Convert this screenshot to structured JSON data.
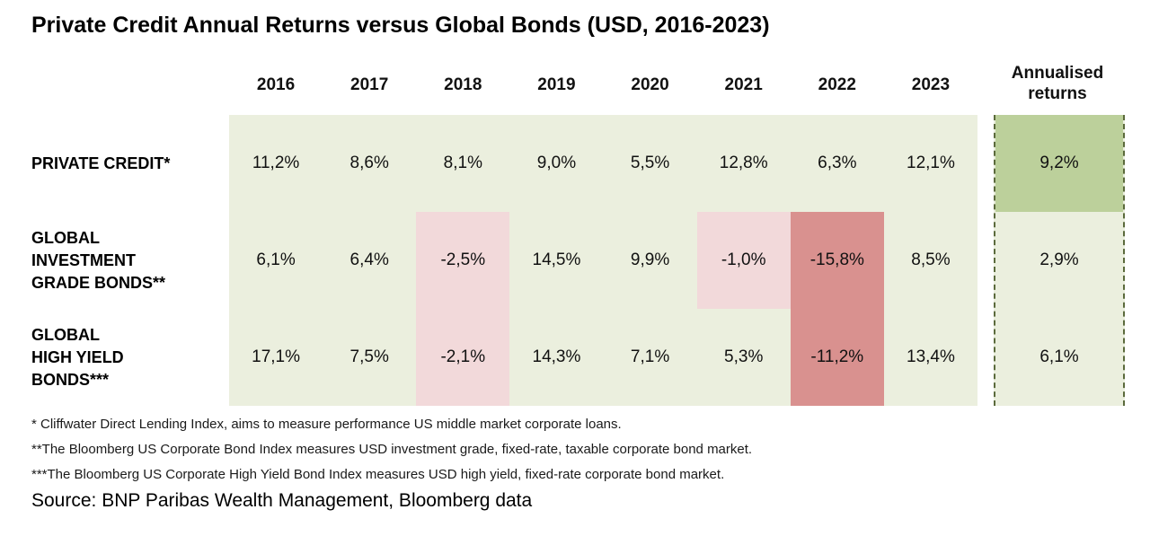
{
  "title": "Private Credit Annual Returns versus Global Bonds (USD, 2016-2023)",
  "chart_data": {
    "type": "table",
    "title": "Private Credit Annual Returns versus Global Bonds (USD, 2016-2023)",
    "categories": [
      "2016",
      "2017",
      "2018",
      "2019",
      "2020",
      "2021",
      "2022",
      "2023"
    ],
    "annualised_header_lines": [
      "Annualised",
      "returns"
    ],
    "value_format": "percent, comma decimal separator",
    "rows": [
      {
        "label_lines": [
          "PRIVATE CREDIT*"
        ],
        "values": [
          11.2,
          8.6,
          8.1,
          9.0,
          5.5,
          12.8,
          6.3,
          12.1
        ],
        "display": [
          "11,2%",
          "8,6%",
          "8,1%",
          "9,0%",
          "5,5%",
          "12,8%",
          "6,3%",
          "12,1%"
        ],
        "cell_styles": [
          "base",
          "base",
          "base",
          "base",
          "base",
          "base",
          "base",
          "base"
        ],
        "annualised_value": 9.2,
        "annualised_display": "9,2%",
        "annualised_style": "best"
      },
      {
        "label_lines": [
          "GLOBAL",
          "INVESTMENT",
          "GRADE BONDS**"
        ],
        "values": [
          6.1,
          6.4,
          -2.5,
          14.5,
          9.9,
          -1.0,
          -15.8,
          8.5
        ],
        "display": [
          "6,1%",
          "6,4%",
          "-2,5%",
          "14,5%",
          "9,9%",
          "-1,0%",
          "-15,8%",
          "8,5%"
        ],
        "cell_styles": [
          "base",
          "base",
          "neg",
          "base",
          "base",
          "neg",
          "worst",
          "base"
        ],
        "annualised_value": 2.9,
        "annualised_display": "2,9%",
        "annualised_style": "base"
      },
      {
        "label_lines": [
          "GLOBAL",
          "HIGH YIELD",
          "BONDS***"
        ],
        "values": [
          17.1,
          7.5,
          -2.1,
          14.3,
          7.1,
          5.3,
          -11.2,
          13.4
        ],
        "display": [
          "17,1%",
          "7,5%",
          "-2,1%",
          "14,3%",
          "7,1%",
          "5,3%",
          "-11,2%",
          "13,4%"
        ],
        "cell_styles": [
          "base",
          "base",
          "neg",
          "base",
          "base",
          "base",
          "worst",
          "base"
        ],
        "annualised_value": 6.1,
        "annualised_display": "6,1%",
        "annualised_style": "base"
      }
    ],
    "colors": {
      "base_green": "#EBEFDE",
      "highlight_green": "#BCD09B",
      "light_pink": "#F2D9DA",
      "dark_red": "#D9918F",
      "dashed_border": "#5B6A3C",
      "text": "#111111"
    },
    "grid": false,
    "legend_position": "none"
  },
  "footnotes": [
    "* Cliffwater Direct Lending Index, aims to measure performance US middle market corporate loans.",
    "**The Bloomberg US Corporate Bond Index measures USD investment grade, fixed-rate, taxable corporate bond market.",
    "***The Bloomberg US Corporate High Yield Bond Index measures USD high yield, fixed-rate corporate bond market."
  ],
  "source": "Source: BNP Paribas Wealth Management, Bloomberg data"
}
